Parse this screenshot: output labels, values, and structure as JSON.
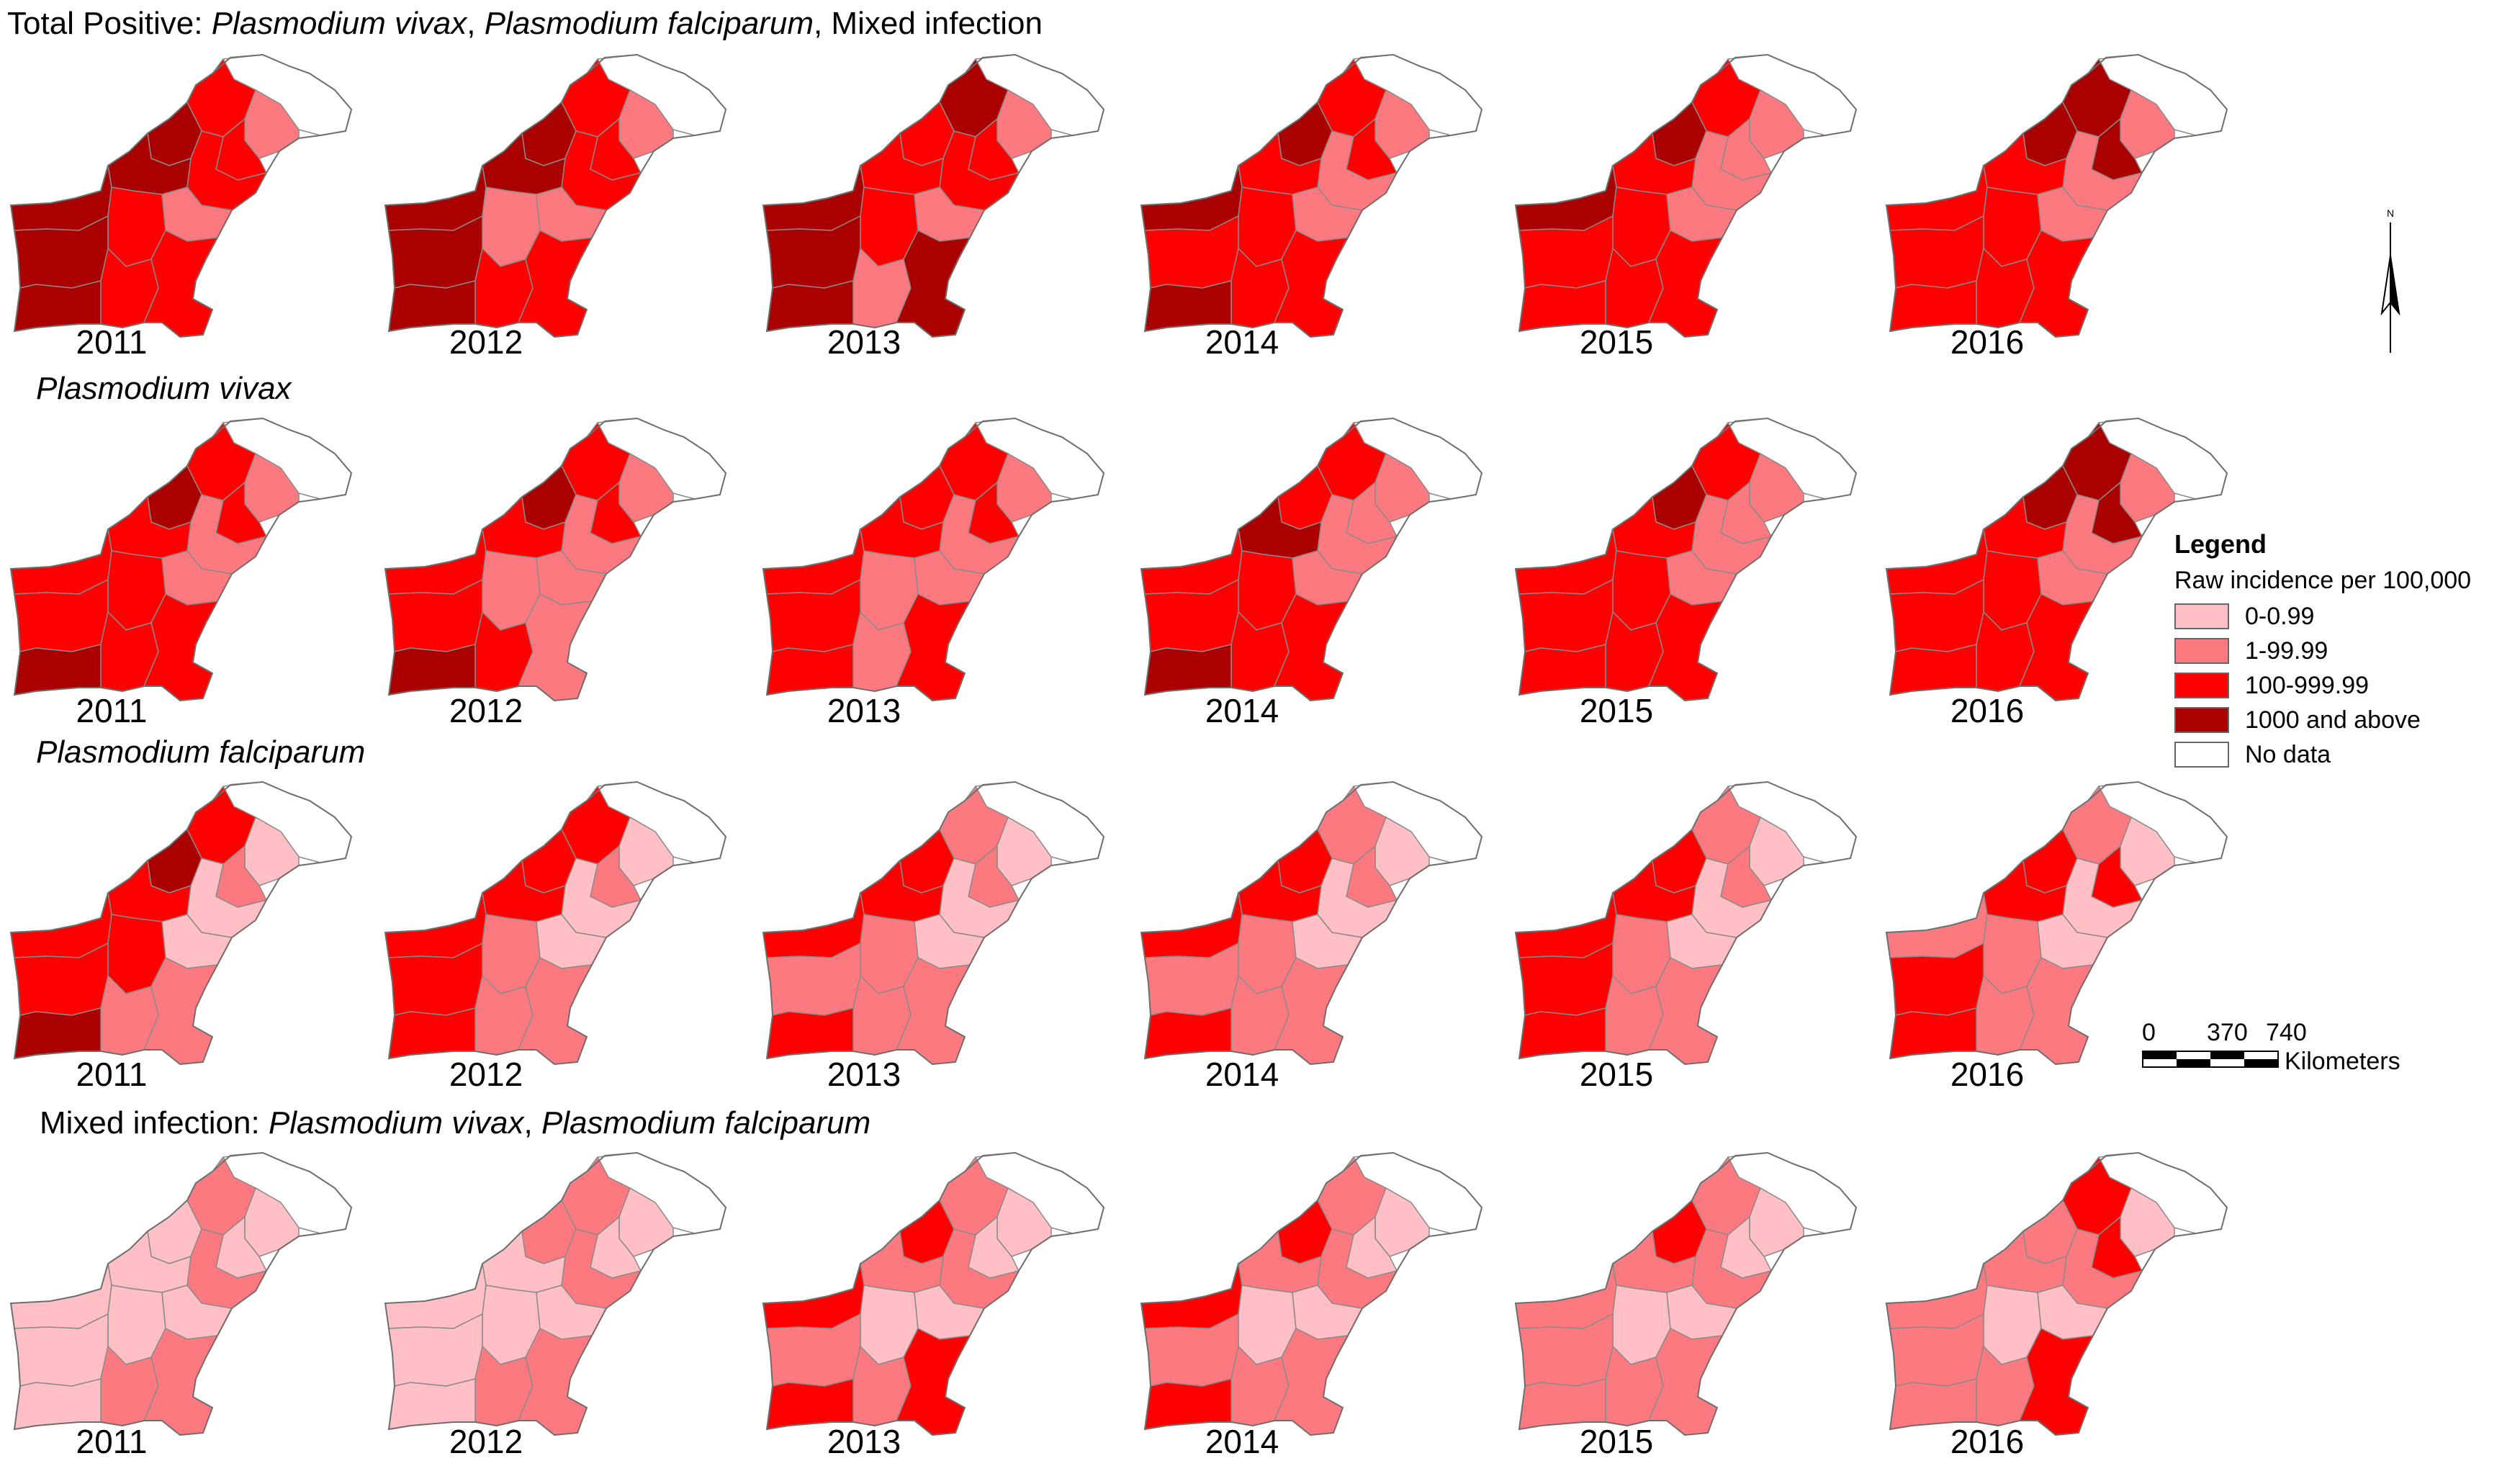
{
  "rows": [
    {
      "title_parts": [
        {
          "text": "Total Positive: ",
          "italic": false
        },
        {
          "text": "Plasmodium vivax",
          "italic": true
        },
        {
          "text": ", ",
          "italic": false
        },
        {
          "text": "Plasmodium falciparum",
          "italic": true
        },
        {
          "text": ", Mixed infection",
          "italic": false
        }
      ],
      "scheme": "total"
    },
    {
      "title_parts": [
        {
          "text": "Plasmodium vivax",
          "italic": true
        }
      ],
      "scheme": "vivax"
    },
    {
      "title_parts": [
        {
          "text": "Plasmodium falciparum",
          "italic": true
        }
      ],
      "scheme": "falciparum"
    },
    {
      "title_parts": [
        {
          "text": "Mixed infection: ",
          "italic": false
        },
        {
          "text": "Plasmodium vivax",
          "italic": true
        },
        {
          "text": ", ",
          "italic": false
        },
        {
          "text": "Plasmodium falciparum",
          "italic": true
        }
      ],
      "scheme": "mixed"
    }
  ],
  "years": [
    "2011",
    "2012",
    "2013",
    "2014",
    "2015",
    "2016"
  ],
  "legend": {
    "title": "Legend",
    "subtitle": "Raw incidence per 100,000",
    "classes": [
      {
        "label": "0-0.99",
        "color": "#ffbfc4"
      },
      {
        "label": "1-99.99",
        "color": "#fc7a7f"
      },
      {
        "label": "100-999.99",
        "color": "#ff0000"
      },
      {
        "label": "1000 and above",
        "color": "#ab0000"
      },
      {
        "label": "No data",
        "color": "#ffffff"
      }
    ]
  },
  "scale_bar": {
    "ticks": [
      "0",
      "370",
      "740"
    ],
    "unit": "Kilometers"
  },
  "north_arrow": {
    "label": "N"
  },
  "colors": {
    "no_data": "#ffffff",
    "border": "#8a8a8a",
    "outline": "#6e6e6e"
  }
}
